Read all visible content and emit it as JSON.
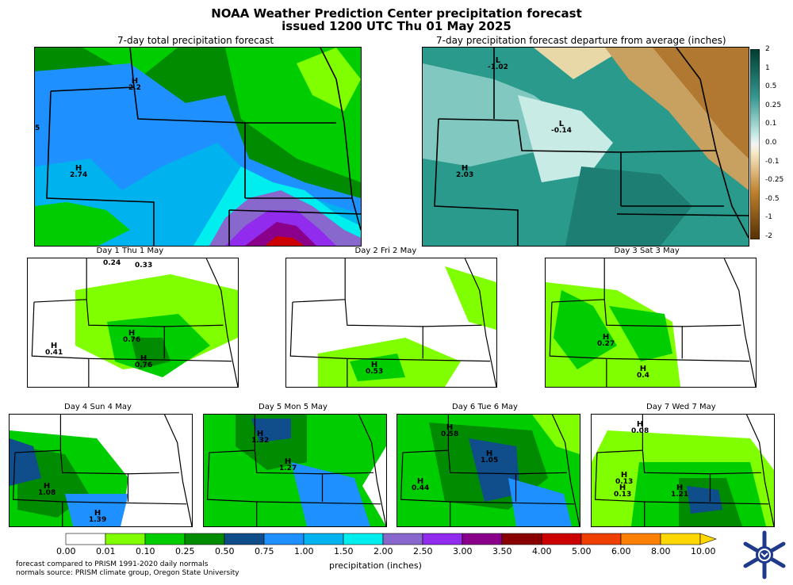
{
  "title_line1": "NOAA Weather Prediction Center precipitation forecast",
  "title_line2": "issued 1200 UTC Thu 01 May 2025",
  "total_title": "7-day total precipitation forecast",
  "departure_title": "7-day precipitation forecast departure from average (inches)",
  "total_marks": [
    {
      "type": "H",
      "value": "2.2"
    },
    {
      "type": "H",
      "value": "2.74"
    },
    {
      "type": "",
      "value": "5"
    }
  ],
  "departure_marks": [
    {
      "type": "L",
      "value": "-1.02"
    },
    {
      "type": "L",
      "value": "-0.14"
    },
    {
      "type": "H",
      "value": "2.03"
    }
  ],
  "departure_scale": [
    "2",
    "1",
    "0.5",
    "0.25",
    "0.1",
    "0.0",
    "-0.1",
    "-0.25",
    "-0.5",
    "-1",
    "-2"
  ],
  "days": [
    {
      "label": "Day 1  Thu 1 May",
      "marks": [
        {
          "type": "",
          "value": "0.24"
        },
        {
          "type": "",
          "value": "0.33"
        },
        {
          "type": "H",
          "value": "0.76"
        },
        {
          "type": "H",
          "value": "0.41"
        },
        {
          "type": "H",
          "value": "0.76"
        }
      ]
    },
    {
      "label": "Day 2  Fri 2 May",
      "marks": [
        {
          "type": "H",
          "value": "0.53"
        }
      ]
    },
    {
      "label": "Day 3  Sat 3 May",
      "marks": [
        {
          "type": "H",
          "value": "0.27"
        },
        {
          "type": "H",
          "value": "0.4"
        }
      ]
    },
    {
      "label": "Day 4  Sun 4 May",
      "marks": [
        {
          "type": "H",
          "value": "1.08"
        },
        {
          "type": "H",
          "value": "1.39"
        }
      ]
    },
    {
      "label": "Day 5  Mon 5 May",
      "marks": [
        {
          "type": "H",
          "value": "1.32"
        },
        {
          "type": "H",
          "value": "1.27"
        }
      ]
    },
    {
      "label": "Day 6  Tue 6 May",
      "marks": [
        {
          "type": "H",
          "value": "0.58"
        },
        {
          "type": "H",
          "value": "1.05"
        },
        {
          "type": "H",
          "value": "0.44"
        }
      ]
    },
    {
      "label": "Day 7  Wed 7 May",
      "marks": [
        {
          "type": "H",
          "value": "0.08"
        },
        {
          "type": "H",
          "value": "0.13"
        },
        {
          "type": "H",
          "value": "0.13"
        },
        {
          "type": "H",
          "value": "1.21"
        }
      ]
    }
  ],
  "precip_scale": {
    "ticks": [
      "0.00",
      "0.01",
      "0.10",
      "0.25",
      "0.50",
      "0.75",
      "1.00",
      "1.50",
      "2.00",
      "2.50",
      "3.00",
      "3.50",
      "4.00",
      "5.00",
      "6.00",
      "8.00",
      "10.00"
    ],
    "colors": [
      "#ffffff",
      "#7fff00",
      "#00cd00",
      "#008b00",
      "#104e8b",
      "#1e90ff",
      "#00b2ee",
      "#00eeee",
      "#8968cd",
      "#912cee",
      "#8b008b",
      "#8b0000",
      "#cd0000",
      "#ee4000",
      "#ff7f00",
      "#ffd700"
    ],
    "label": "precipitation (inches)"
  },
  "footnote_line1": "forecast compared to PRISM 1991-2020 daily normals",
  "footnote_line2": "normals source: PRISM climate group, Oregon State University",
  "logo_icon": "noaa-wpc-snowflake-logo"
}
